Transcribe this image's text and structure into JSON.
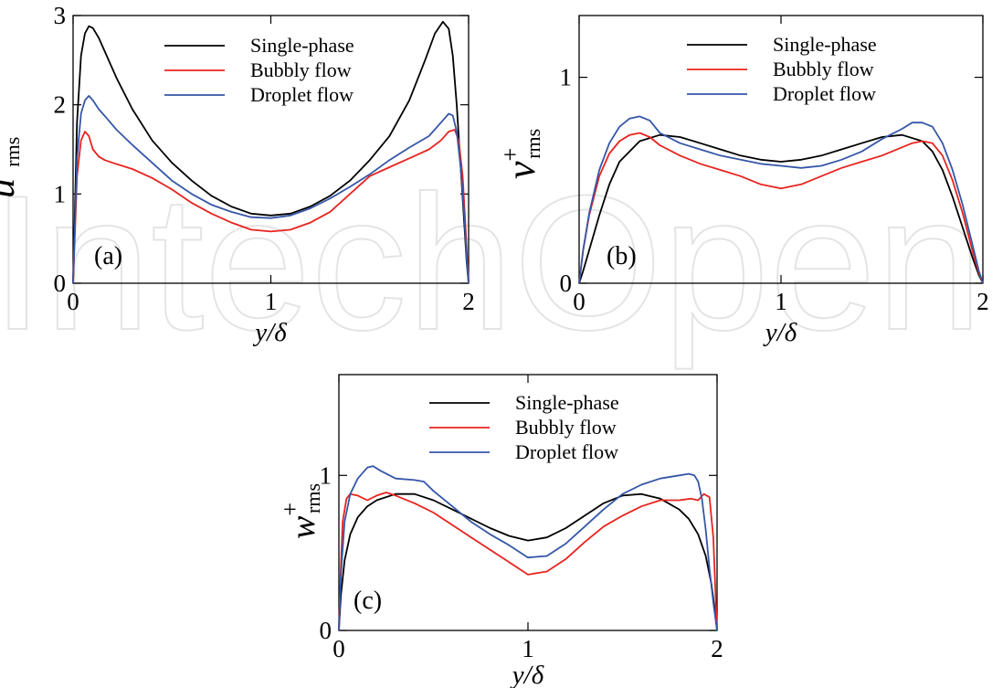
{
  "watermark": "IntechOpen",
  "colors": {
    "single": "#000000",
    "bubbly": "#e8231f",
    "droplet": "#3556a8"
  },
  "chart_data": [
    {
      "type": "line",
      "panel_label": "(a)",
      "xlabel": "y/δ",
      "ylabel": {
        "main": "u′",
        "sup": "+",
        "sub": "rms"
      },
      "xlim": [
        0,
        2
      ],
      "ylim": [
        0,
        3
      ],
      "xticks": [
        0,
        1,
        2
      ],
      "yticks": [
        0,
        1,
        2,
        3
      ],
      "series": [
        {
          "name": "Single-phase",
          "color": "#000000",
          "x": [
            0,
            0.01,
            0.02,
            0.04,
            0.06,
            0.08,
            0.1,
            0.13,
            0.17,
            0.22,
            0.3,
            0.4,
            0.5,
            0.6,
            0.7,
            0.8,
            0.9,
            1.0,
            1.1,
            1.2,
            1.3,
            1.4,
            1.5,
            1.6,
            1.7,
            1.78,
            1.83,
            1.87,
            1.9,
            1.92,
            1.94,
            1.96,
            1.98,
            1.99,
            2.0
          ],
          "y": [
            0,
            0.9,
            1.8,
            2.55,
            2.8,
            2.88,
            2.86,
            2.75,
            2.55,
            2.3,
            1.95,
            1.6,
            1.35,
            1.15,
            0.98,
            0.86,
            0.78,
            0.76,
            0.78,
            0.86,
            0.98,
            1.15,
            1.38,
            1.65,
            2.05,
            2.5,
            2.8,
            2.93,
            2.85,
            2.55,
            2.0,
            1.3,
            0.6,
            0.25,
            0
          ]
        },
        {
          "name": "Bubbly flow",
          "color": "#e8231f",
          "x": [
            0,
            0.01,
            0.02,
            0.04,
            0.06,
            0.08,
            0.1,
            0.13,
            0.16,
            0.2,
            0.3,
            0.4,
            0.5,
            0.6,
            0.7,
            0.8,
            0.9,
            1.0,
            1.1,
            1.2,
            1.3,
            1.4,
            1.5,
            1.6,
            1.7,
            1.8,
            1.86,
            1.9,
            1.93,
            1.95,
            1.97,
            1.98,
            1.99,
            2.0
          ],
          "y": [
            0,
            0.6,
            1.2,
            1.6,
            1.7,
            1.65,
            1.5,
            1.42,
            1.38,
            1.35,
            1.28,
            1.18,
            1.05,
            0.9,
            0.78,
            0.68,
            0.6,
            0.58,
            0.6,
            0.68,
            0.8,
            1.0,
            1.2,
            1.3,
            1.4,
            1.5,
            1.6,
            1.7,
            1.72,
            1.6,
            1.2,
            0.8,
            0.4,
            0
          ]
        },
        {
          "name": "Droplet flow",
          "color": "#3556a8",
          "x": [
            0,
            0.01,
            0.02,
            0.04,
            0.06,
            0.08,
            0.1,
            0.13,
            0.17,
            0.22,
            0.3,
            0.4,
            0.5,
            0.6,
            0.7,
            0.8,
            0.9,
            1.0,
            1.1,
            1.2,
            1.3,
            1.4,
            1.5,
            1.6,
            1.7,
            1.8,
            1.86,
            1.9,
            1.92,
            1.94,
            1.96,
            1.98,
            1.99,
            2.0
          ],
          "y": [
            0,
            0.7,
            1.4,
            1.9,
            2.05,
            2.1,
            2.05,
            1.95,
            1.85,
            1.72,
            1.55,
            1.35,
            1.15,
            1.0,
            0.88,
            0.8,
            0.74,
            0.73,
            0.76,
            0.84,
            0.95,
            1.08,
            1.22,
            1.38,
            1.52,
            1.65,
            1.8,
            1.9,
            1.88,
            1.7,
            1.3,
            0.7,
            0.3,
            0
          ]
        }
      ]
    },
    {
      "type": "line",
      "panel_label": "(b)",
      "xlabel": "y/δ",
      "ylabel": {
        "main": "v",
        "sup": "+",
        "sub": "rms"
      },
      "xlim": [
        0,
        2
      ],
      "ylim": [
        0,
        1.3
      ],
      "xticks": [
        0,
        1,
        2
      ],
      "yticks": [
        0,
        1
      ],
      "series": [
        {
          "name": "Single-phase",
          "color": "#000000",
          "x": [
            0,
            0.02,
            0.05,
            0.1,
            0.15,
            0.2,
            0.3,
            0.4,
            0.5,
            0.6,
            0.7,
            0.8,
            0.9,
            1.0,
            1.1,
            1.2,
            1.3,
            1.4,
            1.5,
            1.6,
            1.7,
            1.75,
            1.8,
            1.85,
            1.9,
            1.95,
            1.98,
            2.0
          ],
          "y": [
            0,
            0.06,
            0.16,
            0.33,
            0.48,
            0.59,
            0.69,
            0.72,
            0.71,
            0.68,
            0.65,
            0.62,
            0.6,
            0.59,
            0.6,
            0.62,
            0.65,
            0.68,
            0.71,
            0.72,
            0.69,
            0.64,
            0.55,
            0.42,
            0.27,
            0.12,
            0.04,
            0
          ]
        },
        {
          "name": "Bubbly flow",
          "color": "#e8231f",
          "x": [
            0,
            0.02,
            0.05,
            0.1,
            0.15,
            0.2,
            0.25,
            0.3,
            0.35,
            0.4,
            0.5,
            0.6,
            0.7,
            0.8,
            0.9,
            1.0,
            1.1,
            1.2,
            1.3,
            1.4,
            1.5,
            1.6,
            1.65,
            1.7,
            1.75,
            1.8,
            1.85,
            1.9,
            1.95,
            1.98,
            2.0
          ],
          "y": [
            0,
            0.16,
            0.33,
            0.52,
            0.63,
            0.69,
            0.72,
            0.73,
            0.71,
            0.67,
            0.62,
            0.58,
            0.55,
            0.52,
            0.48,
            0.46,
            0.48,
            0.52,
            0.56,
            0.59,
            0.62,
            0.66,
            0.68,
            0.69,
            0.68,
            0.62,
            0.5,
            0.34,
            0.15,
            0.05,
            0
          ]
        },
        {
          "name": "Droplet flow",
          "color": "#3556a8",
          "x": [
            0,
            0.02,
            0.05,
            0.1,
            0.15,
            0.2,
            0.25,
            0.3,
            0.35,
            0.4,
            0.5,
            0.6,
            0.7,
            0.8,
            0.9,
            1.0,
            1.1,
            1.2,
            1.3,
            1.4,
            1.5,
            1.6,
            1.65,
            1.7,
            1.75,
            1.8,
            1.85,
            1.9,
            1.95,
            1.98,
            2.0
          ],
          "y": [
            0,
            0.16,
            0.34,
            0.55,
            0.68,
            0.76,
            0.8,
            0.81,
            0.79,
            0.73,
            0.68,
            0.65,
            0.62,
            0.6,
            0.58,
            0.57,
            0.56,
            0.57,
            0.6,
            0.64,
            0.7,
            0.75,
            0.78,
            0.78,
            0.76,
            0.68,
            0.55,
            0.38,
            0.18,
            0.06,
            0
          ]
        }
      ]
    },
    {
      "type": "line",
      "panel_label": "(c)",
      "xlabel": "y/δ",
      "ylabel": {
        "main": "w",
        "sup": "+",
        "sub": "rms"
      },
      "xlim": [
        0,
        2
      ],
      "ylim": [
        0,
        1.65
      ],
      "xticks": [
        0,
        1,
        2
      ],
      "yticks": [
        0,
        1
      ],
      "series": [
        {
          "name": "Single-phase",
          "color": "#000000",
          "x": [
            0,
            0.01,
            0.03,
            0.06,
            0.1,
            0.15,
            0.2,
            0.3,
            0.4,
            0.5,
            0.6,
            0.7,
            0.8,
            0.9,
            1.0,
            1.1,
            1.2,
            1.3,
            1.4,
            1.5,
            1.6,
            1.7,
            1.8,
            1.85,
            1.9,
            1.94,
            1.97,
            1.99,
            2.0
          ],
          "y": [
            0,
            0.22,
            0.45,
            0.62,
            0.73,
            0.8,
            0.84,
            0.88,
            0.88,
            0.84,
            0.78,
            0.72,
            0.66,
            0.61,
            0.58,
            0.6,
            0.66,
            0.74,
            0.82,
            0.87,
            0.88,
            0.85,
            0.78,
            0.72,
            0.62,
            0.48,
            0.3,
            0.12,
            0
          ]
        },
        {
          "name": "Bubbly flow",
          "color": "#e8231f",
          "x": [
            0,
            0.01,
            0.02,
            0.04,
            0.06,
            0.1,
            0.15,
            0.2,
            0.25,
            0.3,
            0.4,
            0.5,
            0.6,
            0.7,
            0.8,
            0.9,
            1.0,
            1.1,
            1.2,
            1.3,
            1.4,
            1.5,
            1.6,
            1.7,
            1.8,
            1.86,
            1.9,
            1.93,
            1.96,
            1.98,
            1.99,
            2.0
          ],
          "y": [
            0,
            0.4,
            0.7,
            0.85,
            0.88,
            0.87,
            0.84,
            0.87,
            0.89,
            0.87,
            0.82,
            0.76,
            0.68,
            0.6,
            0.52,
            0.44,
            0.36,
            0.38,
            0.46,
            0.57,
            0.67,
            0.74,
            0.8,
            0.84,
            0.84,
            0.85,
            0.84,
            0.88,
            0.86,
            0.6,
            0.3,
            0
          ]
        },
        {
          "name": "Droplet flow",
          "color": "#3556a8",
          "x": [
            0,
            0.01,
            0.03,
            0.06,
            0.1,
            0.15,
            0.18,
            0.22,
            0.3,
            0.4,
            0.45,
            0.5,
            0.6,
            0.7,
            0.8,
            0.9,
            1.0,
            1.1,
            1.2,
            1.3,
            1.4,
            1.5,
            1.6,
            1.7,
            1.8,
            1.85,
            1.88,
            1.9,
            1.92,
            1.94,
            1.96,
            1.98,
            2.0
          ],
          "y": [
            0,
            0.35,
            0.7,
            0.88,
            0.98,
            1.05,
            1.06,
            1.03,
            0.98,
            0.97,
            0.96,
            0.9,
            0.8,
            0.7,
            0.62,
            0.55,
            0.47,
            0.48,
            0.56,
            0.67,
            0.78,
            0.88,
            0.94,
            0.98,
            1.0,
            1.01,
            1.0,
            0.96,
            0.85,
            0.65,
            0.4,
            0.18,
            0
          ]
        }
      ]
    }
  ]
}
